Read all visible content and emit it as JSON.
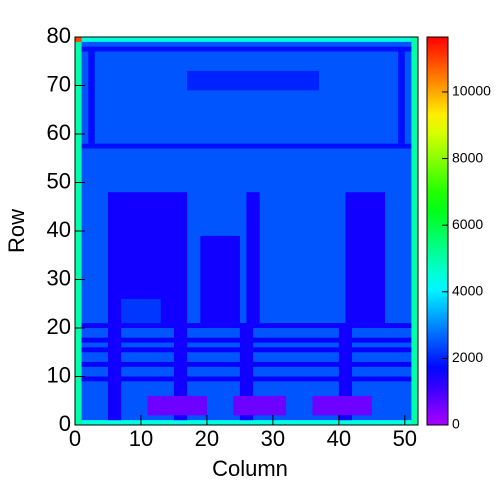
{
  "chart_data": {
    "type": "heatmap",
    "colormap": "rainbow",
    "x_label": "Column",
    "y_label": "Row",
    "xlim": [
      0,
      52
    ],
    "ylim": [
      0,
      80
    ],
    "zlim": [
      0,
      11650
    ],
    "xticks": [
      0,
      10,
      20,
      30,
      40,
      50
    ],
    "yticks": [
      0,
      10,
      20,
      30,
      40,
      50,
      60,
      70,
      80
    ],
    "zticks": [
      0,
      2000,
      4000,
      6000,
      8000,
      10000
    ],
    "cells": [
      {
        "x": [
          0,
          52
        ],
        "y": [
          0,
          80
        ],
        "z": 2500
      },
      {
        "x": [
          0,
          1
        ],
        "y": [
          0,
          80
        ],
        "z": 5000
      },
      {
        "x": [
          51,
          52
        ],
        "y": [
          0,
          80
        ],
        "z": 5000
      },
      {
        "x": [
          1,
          51
        ],
        "y": [
          79,
          80
        ],
        "z": 4500
      },
      {
        "x": [
          1,
          51
        ],
        "y": [
          0,
          1
        ],
        "z": 4500
      },
      {
        "x": [
          0,
          1
        ],
        "y": [
          79,
          80
        ],
        "z": 11000
      },
      {
        "x": [
          1,
          51
        ],
        "y": [
          77,
          78
        ],
        "z": 1800
      },
      {
        "x": [
          2,
          3
        ],
        "y": [
          58,
          78
        ],
        "z": 1800
      },
      {
        "x": [
          49,
          50
        ],
        "y": [
          58,
          78
        ],
        "z": 1800
      },
      {
        "x": [
          17,
          37
        ],
        "y": [
          69,
          73
        ],
        "z": 2000
      },
      {
        "x": [
          1,
          51
        ],
        "y": [
          57,
          58
        ],
        "z": 1800
      },
      {
        "x": [
          5,
          17
        ],
        "y": [
          21,
          48
        ],
        "z": 1500
      },
      {
        "x": [
          7,
          13
        ],
        "y": [
          21,
          26
        ],
        "z": 2200
      },
      {
        "x": [
          19,
          25
        ],
        "y": [
          21,
          39
        ],
        "z": 1500
      },
      {
        "x": [
          26,
          28
        ],
        "y": [
          21,
          48
        ],
        "z": 1500
      },
      {
        "x": [
          41,
          47
        ],
        "y": [
          21,
          48
        ],
        "z": 1500
      },
      {
        "x": [
          1,
          51
        ],
        "y": [
          20,
          21
        ],
        "z": 1500
      },
      {
        "x": [
          1,
          51
        ],
        "y": [
          17,
          18
        ],
        "z": 1600
      },
      {
        "x": [
          1,
          51
        ],
        "y": [
          15,
          16
        ],
        "z": 1600
      },
      {
        "x": [
          1,
          51
        ],
        "y": [
          12,
          13
        ],
        "z": 1600
      },
      {
        "x": [
          1,
          51
        ],
        "y": [
          9,
          10
        ],
        "z": 1600
      },
      {
        "x": [
          5,
          7
        ],
        "y": [
          1,
          21
        ],
        "z": 1500
      },
      {
        "x": [
          15,
          17
        ],
        "y": [
          1,
          21
        ],
        "z": 1500
      },
      {
        "x": [
          25,
          27
        ],
        "y": [
          1,
          21
        ],
        "z": 1500
      },
      {
        "x": [
          40,
          42
        ],
        "y": [
          1,
          21
        ],
        "z": 1500
      },
      {
        "x": [
          11,
          20
        ],
        "y": [
          2,
          6
        ],
        "z": 600
      },
      {
        "x": [
          24,
          32
        ],
        "y": [
          2,
          6
        ],
        "z": 600
      },
      {
        "x": [
          36,
          45
        ],
        "y": [
          2,
          6
        ],
        "z": 600
      }
    ]
  }
}
